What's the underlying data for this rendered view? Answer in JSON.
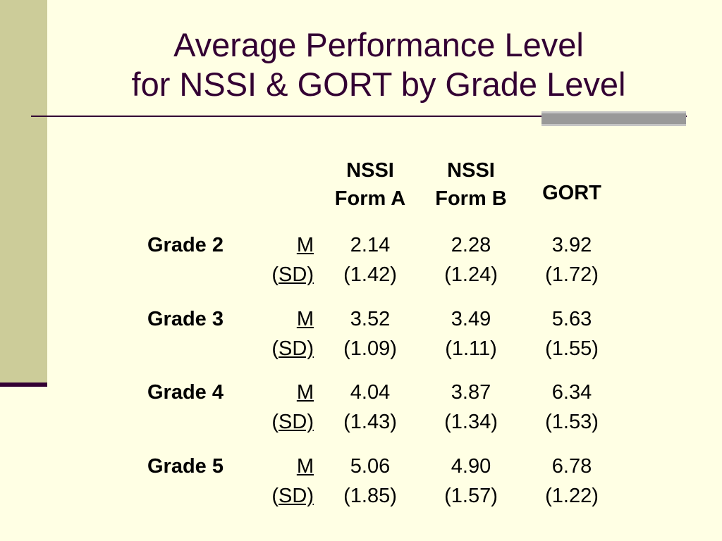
{
  "title": {
    "line1": "Average Performance Level",
    "line2": "for NSSI & GORT by Grade Level"
  },
  "table": {
    "headers": {
      "col1": {
        "line1": "NSSI",
        "line2": "Form A"
      },
      "col2": {
        "line1": "NSSI",
        "line2": "Form B"
      },
      "col3": "GORT"
    },
    "stat_labels": {
      "mean": "M",
      "sd_open": "(",
      "sd": "SD)"
    },
    "rows": [
      {
        "grade": "Grade 2",
        "mean": [
          "2.14",
          "2.28",
          "3.92"
        ],
        "sd": [
          "(1.42)",
          "(1.24)",
          "(1.72)"
        ]
      },
      {
        "grade": "Grade 3",
        "mean": [
          "3.52",
          "3.49",
          "5.63"
        ],
        "sd": [
          "(1.09)",
          "(1.11)",
          "(1.55)"
        ]
      },
      {
        "grade": "Grade 4",
        "mean": [
          "4.04",
          "3.87",
          "6.34"
        ],
        "sd": [
          "(1.43)",
          "(1.34)",
          "(1.53)"
        ]
      },
      {
        "grade": "Grade 5",
        "mean": [
          "5.06",
          "4.90",
          "6.78"
        ],
        "sd": [
          "(1.85)",
          "(1.57)",
          "(1.22)"
        ]
      }
    ]
  },
  "colors": {
    "background": "#FFFFE4",
    "sidebar": "#CCCC99",
    "title": "#330033",
    "accent": "#999999"
  }
}
